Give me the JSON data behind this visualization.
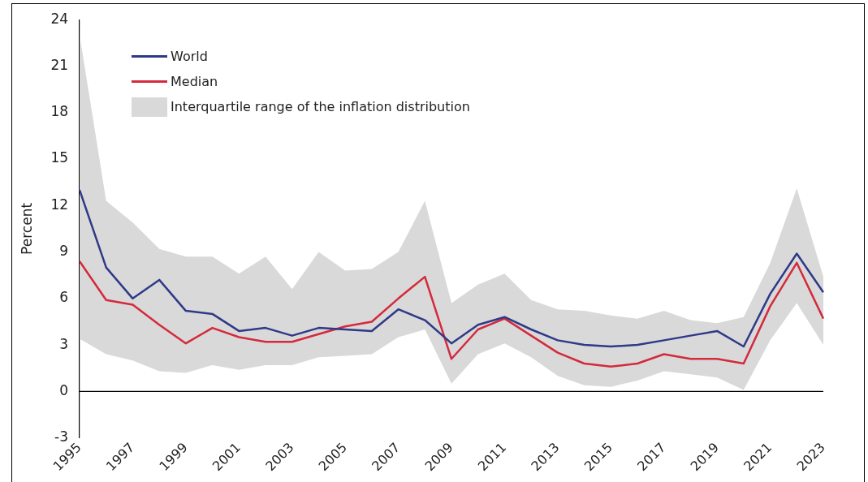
{
  "chart_data": {
    "type": "line",
    "ylabel": "Percent",
    "categories": [
      "1995",
      null,
      "1997",
      null,
      "1999",
      null,
      "2001",
      null,
      "2003",
      null,
      "2005",
      null,
      "2007",
      null,
      "2009",
      null,
      "2011",
      null,
      "2013",
      null,
      "2015",
      null,
      "2017",
      null,
      "2019",
      null,
      "2021",
      null,
      "2023"
    ],
    "series": [
      {
        "name": "World",
        "color": "#2e3a87",
        "values": [
          13,
          8.0,
          6.0,
          7.2,
          5.2,
          5.0,
          3.9,
          4.1,
          3.6,
          4.1,
          4.0,
          3.9,
          5.3,
          4.6,
          3.1,
          4.3,
          4.8,
          4.0,
          3.3,
          3.0,
          2.9,
          3.0,
          3.3,
          3.6,
          3.9,
          2.9,
          6.3,
          8.9,
          6.4
        ]
      },
      {
        "name": "Median",
        "color": "#d42a3c",
        "values": [
          8.4,
          5.9,
          5.6,
          4.3,
          3.1,
          4.1,
          3.5,
          3.2,
          3.2,
          3.7,
          4.2,
          4.5,
          6.0,
          7.4,
          2.1,
          4.0,
          4.7,
          3.6,
          2.5,
          1.8,
          1.6,
          1.8,
          2.4,
          2.1,
          2.1,
          1.8,
          5.5,
          8.3,
          4.7
        ],
        "upper": [
          23,
          12.3,
          10.9,
          9.2,
          8.7,
          8.7,
          7.6,
          8.7,
          6.6,
          9.0,
          7.8,
          7.9,
          9.0,
          12.3,
          5.7,
          6.9,
          7.6,
          5.9,
          5.3,
          5.2,
          4.9,
          4.7,
          5.2,
          4.6,
          4.4,
          4.8,
          8.3,
          13.1,
          7.4
        ],
        "lower": [
          3.4,
          2.4,
          2.0,
          1.3,
          1.2,
          1.7,
          1.4,
          1.7,
          1.7,
          2.2,
          2.3,
          2.4,
          3.5,
          4.0,
          0.5,
          2.4,
          3.1,
          2.2,
          1.0,
          0.4,
          0.3,
          0.7,
          1.3,
          1.1,
          0.9,
          0.1,
          3.3,
          5.7,
          3.0
        ]
      }
    ],
    "annotations": [
      "Interquartile range of the inflation distribution"
    ],
    "grid": false,
    "ylim": [
      -3,
      24
    ],
    "yticks": [
      -3,
      0,
      3,
      6,
      9,
      12,
      15,
      18,
      21,
      24
    ],
    "ref_lines": [
      {
        "axis": "y",
        "value": 0,
        "color": "#000000"
      }
    ],
    "legend": "top left",
    "marker": "none",
    "line_style": "solid"
  }
}
